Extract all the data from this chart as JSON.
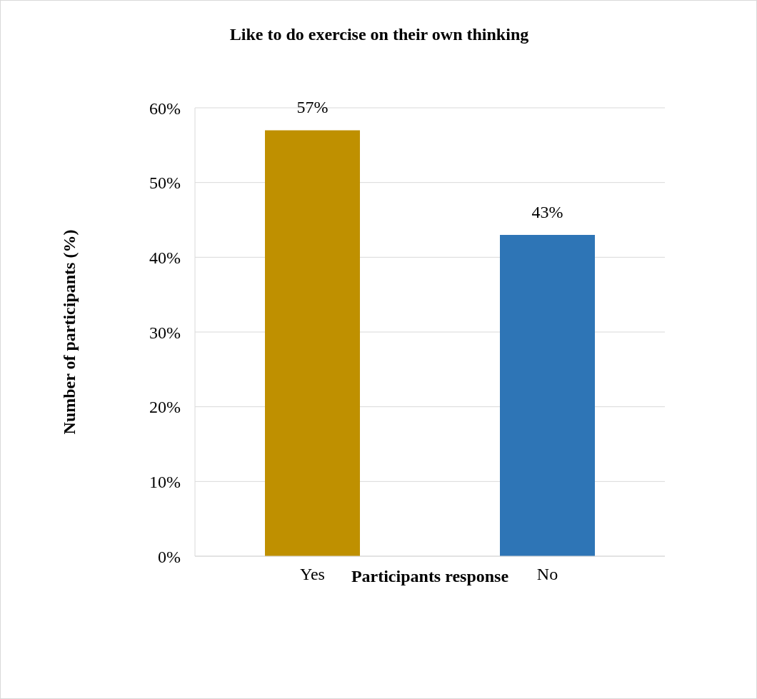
{
  "chart_data": {
    "type": "bar",
    "title": "Like to do exercise on their own thinking",
    "xlabel": "Participants response",
    "ylabel": "Number of participants (%)",
    "categories": [
      "Yes",
      "No"
    ],
    "values": [
      57,
      43
    ],
    "colors": [
      "#bf9000",
      "#2e75b6"
    ],
    "value_labels": [
      "57%",
      "43%"
    ],
    "ylim": [
      0,
      60
    ],
    "yticks": [
      {
        "value": 0,
        "label": "0%"
      },
      {
        "value": 10,
        "label": "10%"
      },
      {
        "value": 20,
        "label": "20%"
      },
      {
        "value": 30,
        "label": "30%"
      },
      {
        "value": 40,
        "label": "40%"
      },
      {
        "value": 50,
        "label": "50%"
      },
      {
        "value": 60,
        "label": "60%"
      }
    ],
    "grid": "y",
    "legend": false
  }
}
